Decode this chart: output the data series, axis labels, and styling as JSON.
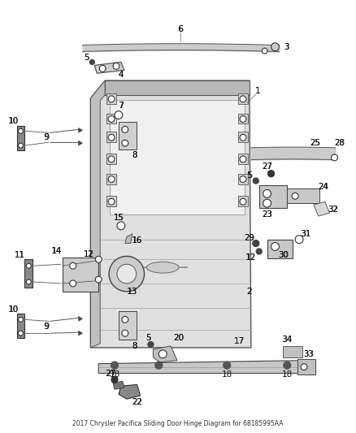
{
  "title": "2017 Chrysler Pacifica Sliding Door Hinge Diagram for 68185995AA",
  "background_color": "#ffffff",
  "fig_width": 4.38,
  "fig_height": 5.33,
  "dpi": 100
}
